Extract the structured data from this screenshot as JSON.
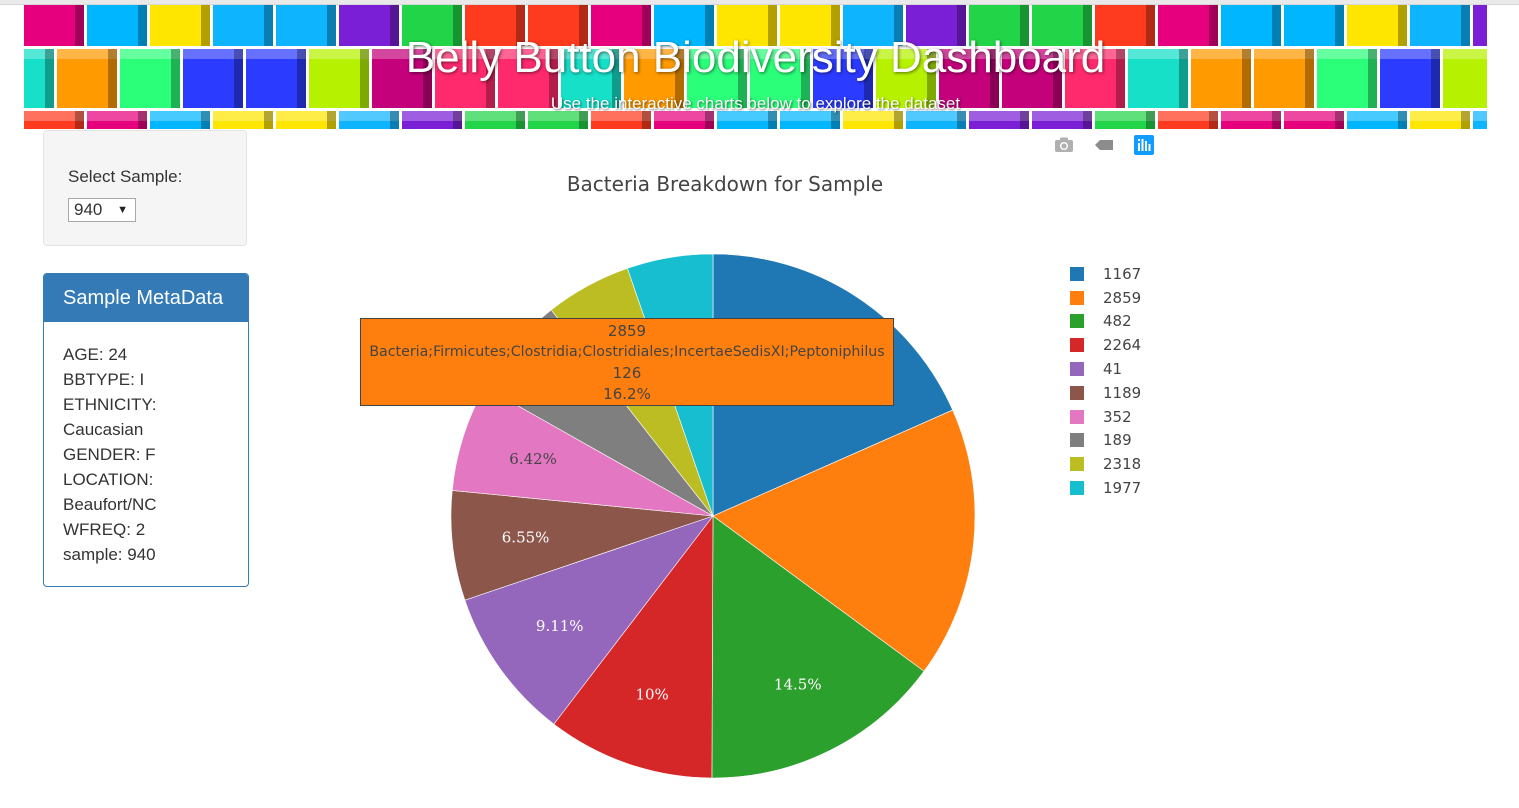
{
  "header": {
    "title": "Belly Button Biodiversity Dashboard",
    "subtitle": "Use the interactive charts below to explore the dataset"
  },
  "selector": {
    "label": "Select Sample:",
    "selected": "940"
  },
  "metadata_panel": {
    "title": "Sample MetaData",
    "lines": [
      "AGE: 24",
      "BBTYPE: I",
      "ETHNICITY:",
      "Caucasian",
      "GENDER: F",
      "LOCATION:",
      "Beaufort/NC",
      "WFREQ: 2",
      "sample: 940"
    ]
  },
  "modebar": {
    "icons": [
      "camera-icon",
      "tag-icon",
      "plotly-logo-icon"
    ]
  },
  "chart_data": {
    "type": "pie",
    "title": "Bacteria Breakdown for Sample",
    "labels": [
      "1167",
      "2859",
      "482",
      "2264",
      "41",
      "1189",
      "352",
      "189",
      "2318",
      "1977"
    ],
    "percents": [
      17.8,
      16.2,
      14.5,
      10,
      9.11,
      6.55,
      6.42,
      6.03,
      5.13,
      5.13
    ],
    "text_labels": [
      "",
      "",
      "14.5%",
      "10%",
      "9.11%",
      "6.55%",
      "6.42%",
      "6.03%",
      "5.13%",
      "5.13%"
    ],
    "colors": [
      "#1f77b4",
      "#ff7f0e",
      "#2ca02c",
      "#d62728",
      "#9467bd",
      "#8c564b",
      "#e377c2",
      "#7f7f7f",
      "#bcbd22",
      "#17becf"
    ],
    "label_colors": [
      "#ffffff",
      "#ffffff",
      "#ffffff",
      "#ffffff",
      "#ffffff",
      "#ffffff",
      "#444444",
      "#ffffff",
      "#444444",
      "#444444"
    ],
    "legend_position": "right"
  },
  "hover": {
    "id": "2859",
    "taxonomy": "Bacteria;Firmicutes;Clostridia;Clostridiales;IncertaeSedisXI;Peptoniphilus",
    "value": "126",
    "percent": "16.2%",
    "color": "#ff7f0e"
  }
}
